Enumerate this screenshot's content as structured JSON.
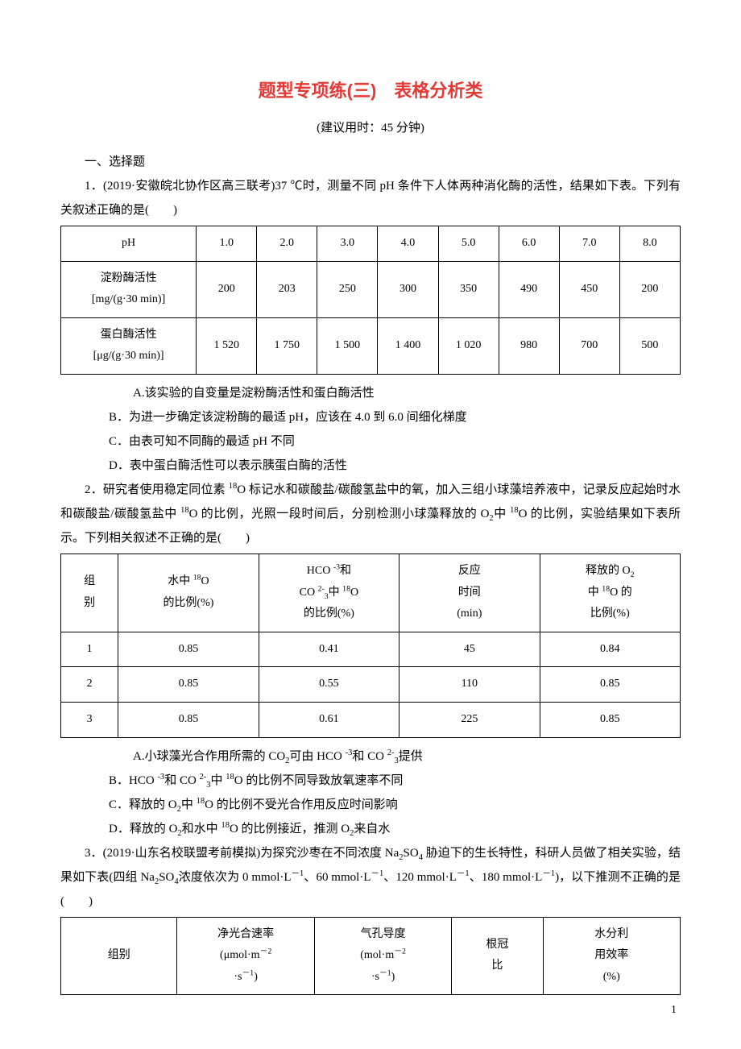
{
  "title_a": "题型专项练(三)",
  "title_b": "表格分析类",
  "title_color": "#e53935",
  "subtitle": "(建议用时：45 分钟)",
  "sec1": "一、选择题",
  "q1": {
    "stem": "1．(2019·安徽皖北协作区高三联考)37 ℃时，测量不同 pH 条件下人体两种消化酶的活性，结果如下表。下列有关叙述正确的是(　　)",
    "headers": [
      "pH",
      "1.0",
      "2.0",
      "3.0",
      "4.0",
      "5.0",
      "6.0",
      "7.0",
      "8.0"
    ],
    "row1_lab_a": "淀粉酶活性",
    "row1_lab_b": "[mg/(g·30 min)]",
    "row1": [
      "200",
      "203",
      "250",
      "300",
      "350",
      "490",
      "450",
      "200"
    ],
    "row2_lab_a": "蛋白酶活性",
    "row2_lab_b": "[μg/(g·30 min)]",
    "row2": [
      "1 520",
      "1 750",
      "1 500",
      "1 400",
      "1 020",
      "980",
      "700",
      "500"
    ],
    "optA": "A.该实验的自变量是淀粉酶活性和蛋白酶活性",
    "optB": "B．为进一步确定该淀粉酶的最适 pH，应该在 4.0 到 6.0 间细化梯度",
    "optC": "C．由表可知不同酶的最适 pH 不同",
    "optD": "D．表中蛋白酶活性可以表示胰蛋白酶的活性"
  },
  "q2": {
    "stem_a": "2．研究者使用稳定同位素 ",
    "stem_b": "O 标记水和碳酸盐/碳酸氢盐中的氧，加入三组小球藻培养液中，记录反应起始时水和碳酸盐/碳酸氢盐中 ",
    "stem_c": "O 的比例，光照一段时间后，分别检测小球藻释放的 O",
    "stem_d": "中 ",
    "stem_e": "O 的比例，实验结果如下表所示。下列相关叙述不正确的是(　　)",
    "h1a": "组",
    "h1b": "别",
    "h2a": "水中 ",
    "h2b": "O",
    "h2c": "的比例(%)",
    "h3a": "HCO ",
    "h3b": "和",
    "h3c": "CO ",
    "h3d": "中 ",
    "h3e": "O",
    "h3f": "的比例(%)",
    "h4a": "反应",
    "h4b": "时间",
    "h4c": "(min)",
    "h5a": "释放的 O",
    "h5b": "中 ",
    "h5c": "O 的",
    "h5d": "比例(%)",
    "rows": [
      [
        "1",
        "0.85",
        "0.41",
        "45",
        "0.84"
      ],
      [
        "2",
        "0.85",
        "0.55",
        "110",
        "0.85"
      ],
      [
        "3",
        "0.85",
        "0.61",
        "225",
        "0.85"
      ]
    ],
    "optA_a": "A.小球藻光合作用所需的 CO",
    "optA_b": "可由 HCO ",
    "optA_c": "和 CO ",
    "optA_d": "提供",
    "optB_a": "B．HCO ",
    "optB_b": "和 CO ",
    "optB_c": "中 ",
    "optB_d": "O 的比例不同导致放氧速率不同",
    "optC_a": "C．释放的 O",
    "optC_b": "中 ",
    "optC_c": "O 的比例不受光合作用反应时间影响",
    "optD_a": "D．释放的 O",
    "optD_b": "和水中 ",
    "optD_c": "O 的比例接近，推测 O",
    "optD_d": "来自水"
  },
  "q3": {
    "stem_a": "3．(2019·山东名校联盟考前模拟)为探究沙枣在不同浓度 Na",
    "stem_b": "SO",
    "stem_c": " 胁迫下的生长特性，科研人员做了相关实验，结果如下表(四组 Na",
    "stem_d": "SO",
    "stem_e": "浓度依次为 0 mmol·L",
    "stem_f": "、60 mmol·L",
    "stem_g": "、120 mmol·L",
    "stem_h": "、180 mmol·L",
    "stem_i": ")，以下推测不正确的是(　　)",
    "h1": "组别",
    "h2a": "净光合速率",
    "h2b": "(μmol·m",
    "h2c": "·s",
    "h2d": ")",
    "h3a": "气孔导度",
    "h3b": "(mol·m",
    "h3c": "·s",
    "h3d": ")",
    "h4a": "根冠",
    "h4b": "比",
    "h5a": "水分利",
    "h5b": "用效率",
    "h5c": "(%)"
  },
  "page_num": "1"
}
